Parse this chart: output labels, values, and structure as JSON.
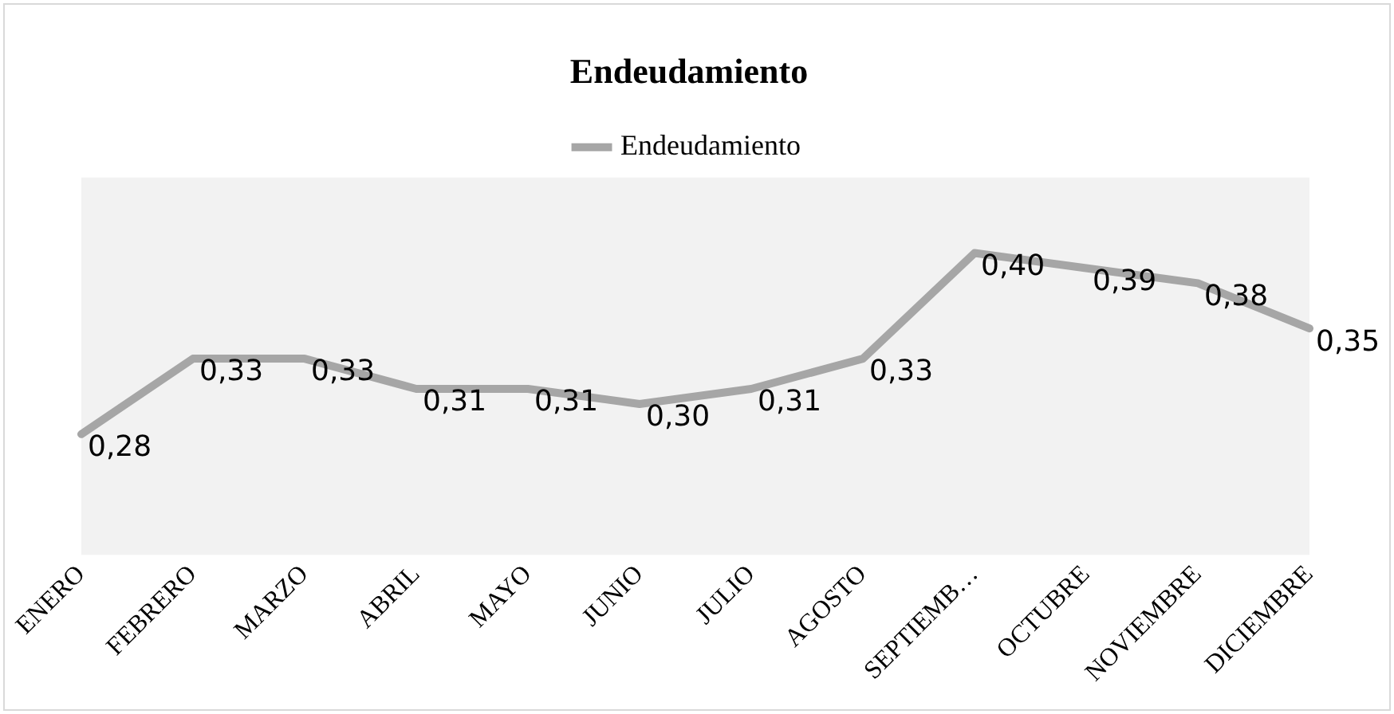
{
  "chart_data": {
    "type": "line",
    "title": "Endeudamiento",
    "categories": [
      "ENERO",
      "FEBRERO",
      "MARZO",
      "ABRIL",
      "MAYO",
      "JUNIO",
      "JULIO",
      "AGOSTO",
      "SEPTIEMB…",
      "OCTUBRE",
      "NOVIEMBRE",
      "DICIEMBRE"
    ],
    "series": [
      {
        "name": "Endeudamiento",
        "color": "#a6a6a6",
        "values": [
          0.28,
          0.33,
          0.33,
          0.31,
          0.31,
          0.3,
          0.31,
          0.33,
          0.4,
          0.39,
          0.38,
          0.35
        ],
        "value_labels": [
          "0,28",
          "0,33",
          "0,33",
          "0,31",
          "0,31",
          "0,30",
          "0,31",
          "0,33",
          "0,40",
          "0,39",
          "0,38",
          "0,35"
        ]
      }
    ],
    "ylim": [
      0.2,
      0.45
    ],
    "tick_labels": "x",
    "grid": false,
    "legend": "top",
    "marker": "none",
    "line_style": "solid"
  }
}
